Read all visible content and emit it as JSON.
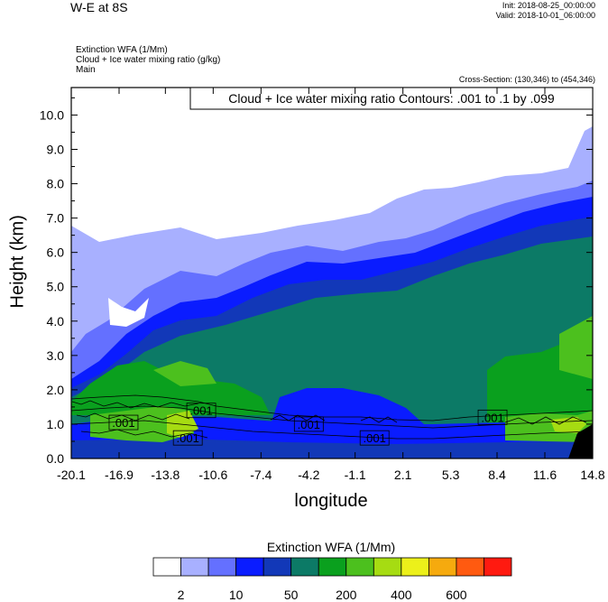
{
  "header": {
    "title": "W-E at 8S",
    "init": "Init: 2018-08-25_00:00:00",
    "valid": "Valid: 2018-10-01_06:00:00",
    "subtitles": [
      "Extinction WFA   (1/Mm)",
      "Cloud + Ice water mixing ratio   (g/kg)",
      "Main"
    ],
    "cross_section": "Cross-Section: (130,346) to (454,346)"
  },
  "chart_data": {
    "type": "heatmap",
    "contour_label": "Cloud + Ice water mixing ratio Contours: .001 to .1 by .099",
    "xlabel": "longitude",
    "ylabel": "Height (km)",
    "x_ticks": [
      "-20.1",
      "-16.9",
      "-13.8",
      "-10.6",
      "-7.4",
      "-4.2",
      "-1.1",
      "2.1",
      "5.3",
      "8.4",
      "11.6",
      "14.8"
    ],
    "y_ticks": [
      "0.0",
      "1.0",
      "2.0",
      "3.0",
      "4.0",
      "5.0",
      "6.0",
      "7.0",
      "8.0",
      "9.0",
      "10.0"
    ],
    "xlim": [
      -20.1,
      14.8
    ],
    "ylim": [
      0,
      10.8
    ],
    "contour_labels": [
      {
        "text": ".001",
        "x": -16.6,
        "y": 1.05
      },
      {
        "text": ".001",
        "x": -11.4,
        "y": 1.4
      },
      {
        "text": ".001",
        "x": -12.3,
        "y": 0.6
      },
      {
        "text": ".001",
        "x": -4.2,
        "y": 1.0
      },
      {
        "text": ".001",
        "x": 0.2,
        "y": 0.6
      },
      {
        "text": ".001",
        "x": 8.1,
        "y": 1.2
      }
    ],
    "colorbar": {
      "title": "Extinction WFA  (1/Mm)",
      "colors": [
        "#ffffff",
        "#a8b0ff",
        "#6470ff",
        "#0a1cff",
        "#1238b8",
        "#0c7a66",
        "#0aa01e",
        "#4cc01e",
        "#a6dc12",
        "#ecf01a",
        "#f6aa0e",
        "#ff5a10",
        "#ff1a10"
      ],
      "tick_labels": [
        "2",
        "10",
        "50",
        "200",
        "400",
        "600"
      ]
    }
  }
}
